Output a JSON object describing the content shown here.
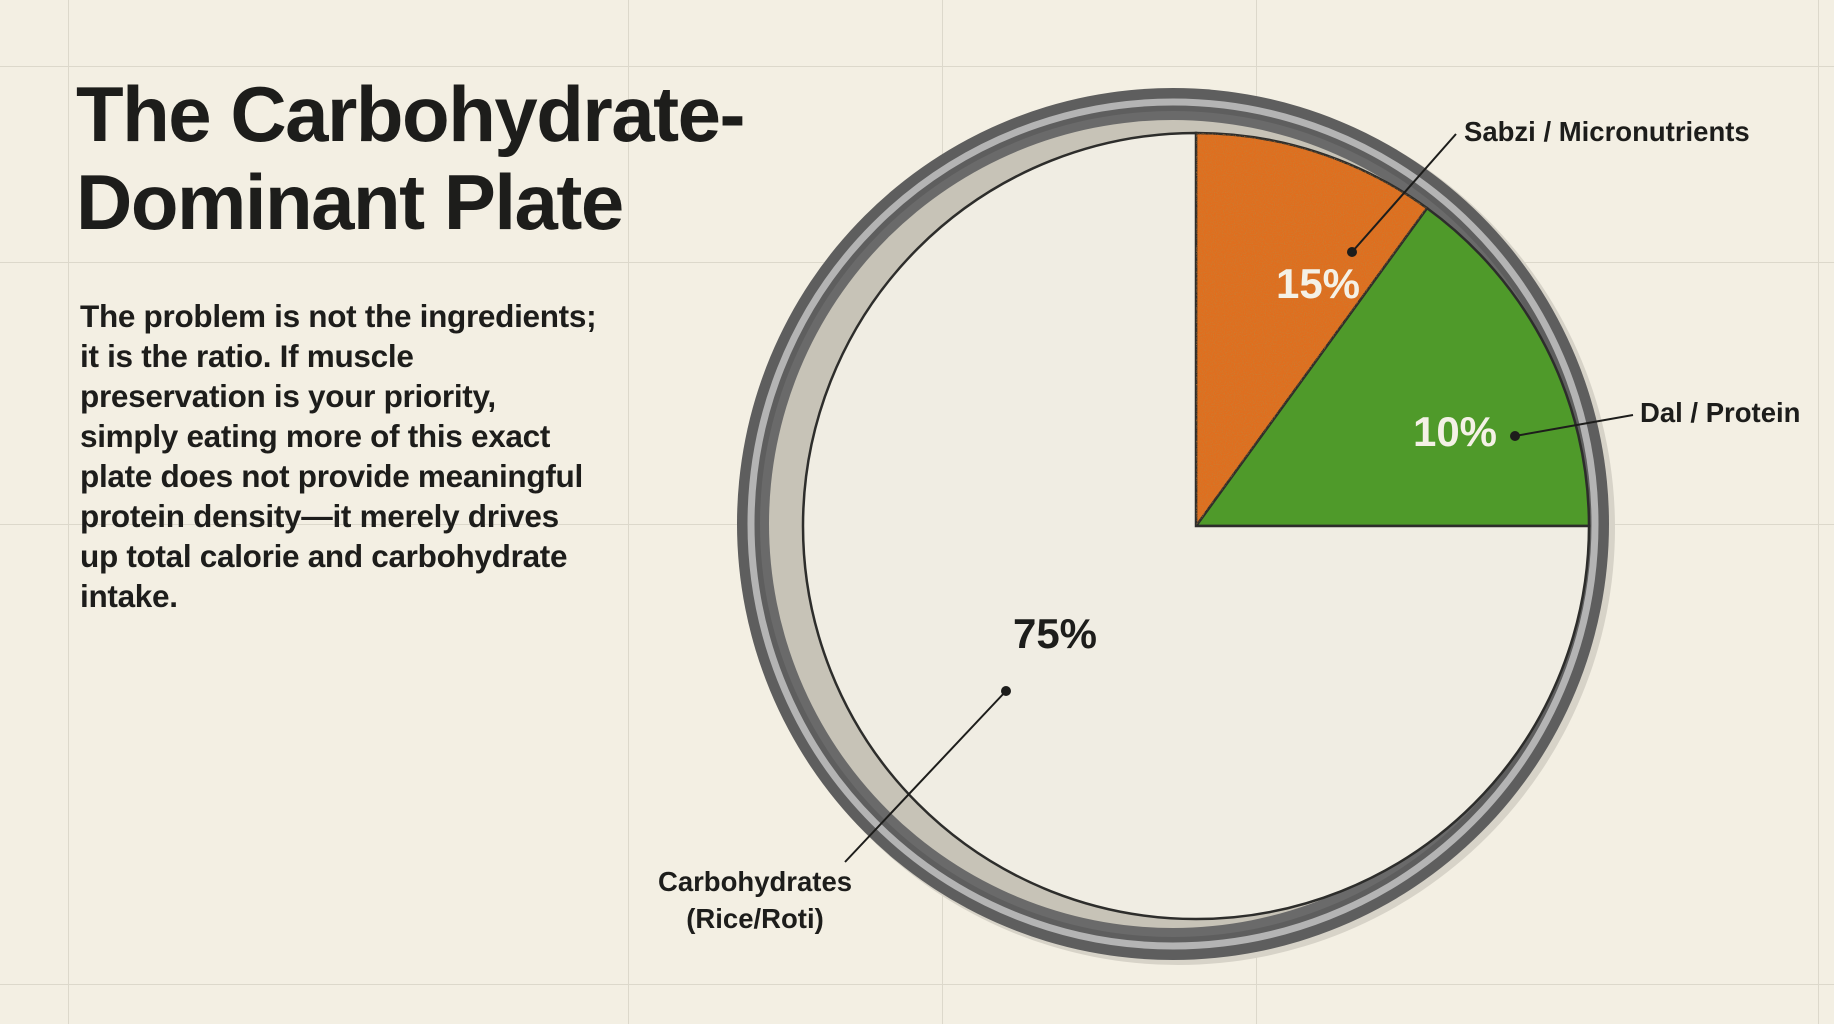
{
  "title_lines": [
    "The Carbohydrate-",
    "Dominant Plate"
  ],
  "body": "The problem is not the ingredients; it is the ratio. If muscle preservation is your priority, simply eating more of this exact plate does not provide meaningful protein density—it merely drives up total calorie and carbohydrate intake.",
  "colors": {
    "background": "#f3efe3",
    "carbohydrates": "#f0ede3",
    "sabzi": "#4f9a2a",
    "dal": "#e06e1e",
    "plate_rim": "#5e5e5e",
    "text": "#1d1d1b"
  },
  "chart_data": {
    "type": "pie",
    "start_angle_deg": 0,
    "direction": "counterclockwise",
    "slices": [
      {
        "name": "Sabzi / Micronutrients",
        "value": 15,
        "label": "15%",
        "color": "#4f9a2a"
      },
      {
        "name": "Dal / Protein",
        "value": 10,
        "label": "10%",
        "color": "#e06e1e"
      },
      {
        "name": "Carbohydrates (Rice/Roti)",
        "label_lines": [
          "Carbohydrates",
          "(Rice/Roti)"
        ],
        "value": 75,
        "label": "75%",
        "color": "#f0ede3"
      }
    ]
  }
}
